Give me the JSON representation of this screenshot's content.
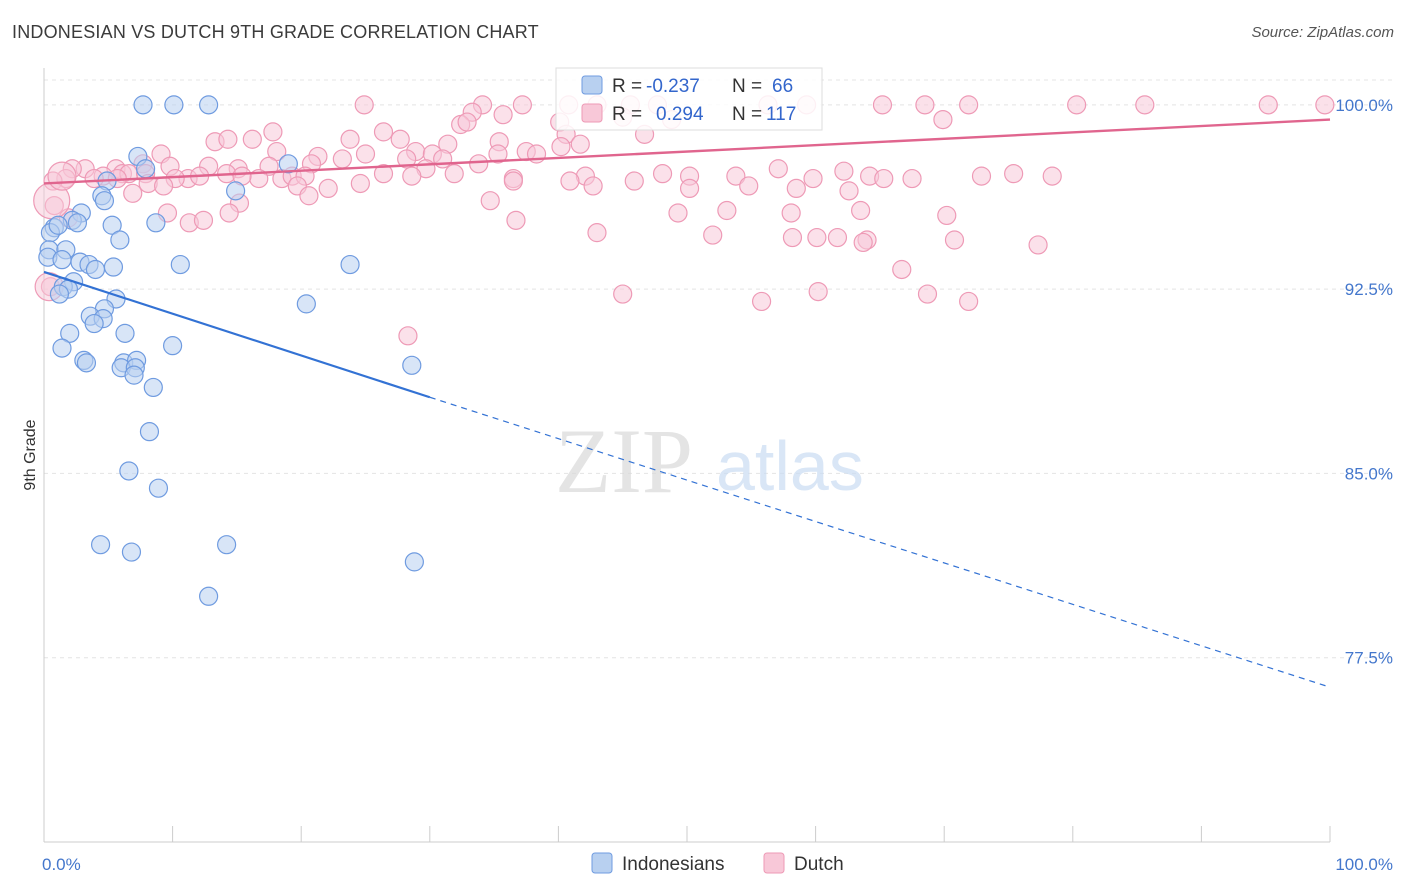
{
  "title": "INDONESIAN VS DUTCH 9TH GRADE CORRELATION CHART",
  "source": "Source: ZipAtlas.com",
  "watermark": {
    "zip": "ZIP",
    "atlas": "atlas"
  },
  "colors": {
    "blue_fill": "#b8d0f0",
    "blue_stroke": "#6f9be0",
    "blue_line": "#3372d4",
    "pink_fill": "#f8c8d8",
    "pink_stroke": "#ee9ab6",
    "pink_line": "#e0658e",
    "grid": "#e4e4e4",
    "tick_text": "#4477cc"
  },
  "legend": {
    "rows": [
      {
        "r_label": "R =",
        "r_value": "-0.237",
        "n_label": "N =",
        "n_value": "66"
      },
      {
        "r_label": "R =",
        "r_value": "0.294",
        "n_label": "N =",
        "n_value": "117"
      }
    ]
  },
  "chart_data": {
    "type": "scatter",
    "xlabel": "",
    "ylabel": "9th Grade",
    "xlim": [
      0,
      100
    ],
    "ylim": [
      70,
      101.5
    ],
    "x_tick_labels": [
      "0.0%",
      "100.0%"
    ],
    "y_ticks": [
      {
        "value": 100.0,
        "label": "100.0%"
      },
      {
        "value": 92.5,
        "label": "92.5%"
      },
      {
        "value": 85.0,
        "label": "85.0%"
      },
      {
        "value": 77.5,
        "label": "77.5%"
      }
    ],
    "grid": true,
    "legend_position": "bottom",
    "series": [
      {
        "name": "Indonesians",
        "color": "#6f9be0",
        "trend": {
          "x0": 0,
          "y0": 93.2,
          "x1": 30,
          "y1": 88.1,
          "dash_to_x": 100,
          "dash_to_y": 76.3
        },
        "points": [
          [
            7.7,
            100
          ],
          [
            10.1,
            100
          ],
          [
            12.8,
            100
          ],
          [
            7.3,
            97.9
          ],
          [
            7.9,
            97.4
          ],
          [
            19,
            97.6
          ],
          [
            4.9,
            96.9
          ],
          [
            14.9,
            96.5
          ],
          [
            4.5,
            96.3
          ],
          [
            4.7,
            96.1
          ],
          [
            2.9,
            95.6
          ],
          [
            2.2,
            95.3
          ],
          [
            2.6,
            95.2
          ],
          [
            0.8,
            95.0
          ],
          [
            0.5,
            94.8
          ],
          [
            1.1,
            95.1
          ],
          [
            5.3,
            95.1
          ],
          [
            8.7,
            95.2
          ],
          [
            5.9,
            94.5
          ],
          [
            0.4,
            94.1
          ],
          [
            1.7,
            94.1
          ],
          [
            0.3,
            93.8
          ],
          [
            1.4,
            93.7
          ],
          [
            2.8,
            93.6
          ],
          [
            3.5,
            93.5
          ],
          [
            4.0,
            93.3
          ],
          [
            5.4,
            93.4
          ],
          [
            10.6,
            93.5
          ],
          [
            23.8,
            93.5
          ],
          [
            2.3,
            92.8
          ],
          [
            1.5,
            92.6
          ],
          [
            1.9,
            92.5
          ],
          [
            1.2,
            92.3
          ],
          [
            5.6,
            92.1
          ],
          [
            20.4,
            91.9
          ],
          [
            4.7,
            91.7
          ],
          [
            3.6,
            91.4
          ],
          [
            4.6,
            91.3
          ],
          [
            3.9,
            91.1
          ],
          [
            6.3,
            90.7
          ],
          [
            2.0,
            90.7
          ],
          [
            1.4,
            90.1
          ],
          [
            10.0,
            90.2
          ],
          [
            3.1,
            89.6
          ],
          [
            3.3,
            89.5
          ],
          [
            6.2,
            89.5
          ],
          [
            7.2,
            89.6
          ],
          [
            6.0,
            89.3
          ],
          [
            7.1,
            89.3
          ],
          [
            28.6,
            89.4
          ],
          [
            7.0,
            89.0
          ],
          [
            8.5,
            88.5
          ],
          [
            8.2,
            86.7
          ],
          [
            6.6,
            85.1
          ],
          [
            8.9,
            84.4
          ],
          [
            4.4,
            82.1
          ],
          [
            6.8,
            81.8
          ],
          [
            14.2,
            82.1
          ],
          [
            28.8,
            81.4
          ],
          [
            12.8,
            80.0
          ]
        ]
      },
      {
        "name": "Dutch",
        "color": "#ee9ab6",
        "trend": {
          "x0": 0,
          "y0": 96.8,
          "x1": 100,
          "y1": 99.4
        },
        "points": [
          [
            24.9,
            100
          ],
          [
            34.1,
            100
          ],
          [
            37.2,
            100
          ],
          [
            40.8,
            100
          ],
          [
            43,
            100
          ],
          [
            45.6,
            100
          ],
          [
            47.7,
            100
          ],
          [
            56.3,
            100
          ],
          [
            59.3,
            100
          ],
          [
            65.2,
            100
          ],
          [
            68.5,
            100
          ],
          [
            71.9,
            100
          ],
          [
            80.3,
            100
          ],
          [
            85.6,
            100
          ],
          [
            95.2,
            100
          ],
          [
            99.6,
            100
          ],
          [
            33.3,
            99.7
          ],
          [
            35.7,
            99.6
          ],
          [
            40.1,
            99.3
          ],
          [
            45,
            99.5
          ],
          [
            48.8,
            99.4
          ],
          [
            69.9,
            99.4
          ],
          [
            32.4,
            99.2
          ],
          [
            32.9,
            99.3
          ],
          [
            26.4,
            98.9
          ],
          [
            40.6,
            98.8
          ],
          [
            46.7,
            98.8
          ],
          [
            13.3,
            98.5
          ],
          [
            14.3,
            98.6
          ],
          [
            16.2,
            98.6
          ],
          [
            17.8,
            98.9
          ],
          [
            23.8,
            98.6
          ],
          [
            27.7,
            98.6
          ],
          [
            31.4,
            98.4
          ],
          [
            35.4,
            98.5
          ],
          [
            41.7,
            98.4
          ],
          [
            40.2,
            98.3
          ],
          [
            9.1,
            98.0
          ],
          [
            21.3,
            97.9
          ],
          [
            18.1,
            98.1
          ],
          [
            25,
            98.0
          ],
          [
            28.9,
            98.1
          ],
          [
            37.5,
            98.1
          ],
          [
            30.2,
            98.0
          ],
          [
            35.3,
            98.0
          ],
          [
            38.3,
            98.0
          ],
          [
            7.7,
            97.6
          ],
          [
            9.8,
            97.5
          ],
          [
            12.8,
            97.5
          ],
          [
            15.1,
            97.4
          ],
          [
            17.5,
            97.5
          ],
          [
            20.8,
            97.6
          ],
          [
            23.2,
            97.8
          ],
          [
            28.2,
            97.8
          ],
          [
            31.0,
            97.8
          ],
          [
            33.8,
            97.6
          ],
          [
            29.7,
            97.4
          ],
          [
            3.2,
            97.4
          ],
          [
            2.2,
            97.4
          ],
          [
            5.6,
            97.4
          ],
          [
            6.1,
            97.2
          ],
          [
            6.6,
            97.2
          ],
          [
            7.9,
            97.2
          ],
          [
            11.2,
            97.0
          ],
          [
            14.2,
            97.2
          ],
          [
            4.6,
            97.1
          ],
          [
            5.7,
            97.0
          ],
          [
            10.2,
            97.0
          ],
          [
            12.1,
            97.1
          ],
          [
            16.7,
            97.0
          ],
          [
            18.5,
            97.0
          ],
          [
            19.3,
            97.1
          ],
          [
            20.3,
            97.1
          ],
          [
            26.4,
            97.2
          ],
          [
            28.6,
            97.1
          ],
          [
            31.9,
            97.2
          ],
          [
            36.5,
            97.0
          ],
          [
            42.1,
            97.1
          ],
          [
            48.1,
            97.2
          ],
          [
            50.2,
            97.1
          ],
          [
            53.8,
            97.1
          ],
          [
            57.1,
            97.4
          ],
          [
            59.8,
            97.0
          ],
          [
            62.2,
            97.3
          ],
          [
            64.2,
            97.1
          ],
          [
            65.3,
            97.0
          ],
          [
            67.5,
            97.0
          ],
          [
            72.9,
            97.1
          ],
          [
            75.4,
            97.2
          ],
          [
            78.4,
            97.1
          ],
          [
            1.7,
            97.0
          ],
          [
            3.9,
            97.0
          ],
          [
            8.1,
            96.8
          ],
          [
            9.3,
            96.7
          ],
          [
            15.4,
            97.1
          ],
          [
            19.7,
            96.7
          ],
          [
            24.6,
            96.8
          ],
          [
            36.5,
            96.9
          ],
          [
            40.9,
            96.9
          ],
          [
            42.7,
            96.7
          ],
          [
            45.9,
            96.9
          ],
          [
            50.2,
            96.6
          ],
          [
            54.8,
            96.7
          ],
          [
            58.5,
            96.6
          ],
          [
            62.6,
            96.5
          ],
          [
            0.7,
            96.9
          ],
          [
            0.8,
            95.9
          ],
          [
            6.9,
            96.4
          ],
          [
            15.2,
            96.0
          ],
          [
            20.6,
            96.3
          ],
          [
            22.1,
            96.6
          ],
          [
            34.7,
            96.1
          ],
          [
            49.3,
            95.6
          ],
          [
            53.1,
            95.7
          ],
          [
            58.1,
            95.6
          ],
          [
            63.5,
            95.7
          ],
          [
            70.2,
            95.5
          ],
          [
            1.9,
            95.4
          ],
          [
            9.6,
            95.6
          ],
          [
            11.3,
            95.2
          ],
          [
            12.4,
            95.3
          ],
          [
            14.4,
            95.6
          ],
          [
            36.7,
            95.3
          ],
          [
            43.0,
            94.8
          ],
          [
            52.0,
            94.7
          ],
          [
            58.2,
            94.6
          ],
          [
            60.1,
            94.6
          ],
          [
            61.7,
            94.6
          ],
          [
            64.0,
            94.5
          ],
          [
            70.8,
            94.5
          ],
          [
            63.7,
            94.4
          ],
          [
            77.3,
            94.3
          ],
          [
            0.5,
            92.6
          ],
          [
            45.0,
            92.3
          ],
          [
            60.2,
            92.4
          ],
          [
            68.7,
            92.3
          ],
          [
            55.8,
            92.0
          ],
          [
            66.7,
            93.3
          ],
          [
            71.9,
            92.0
          ],
          [
            28.3,
            90.6
          ]
        ]
      }
    ]
  },
  "bottom_legend": [
    {
      "label": "Indonesians"
    },
    {
      "label": "Dutch"
    }
  ]
}
